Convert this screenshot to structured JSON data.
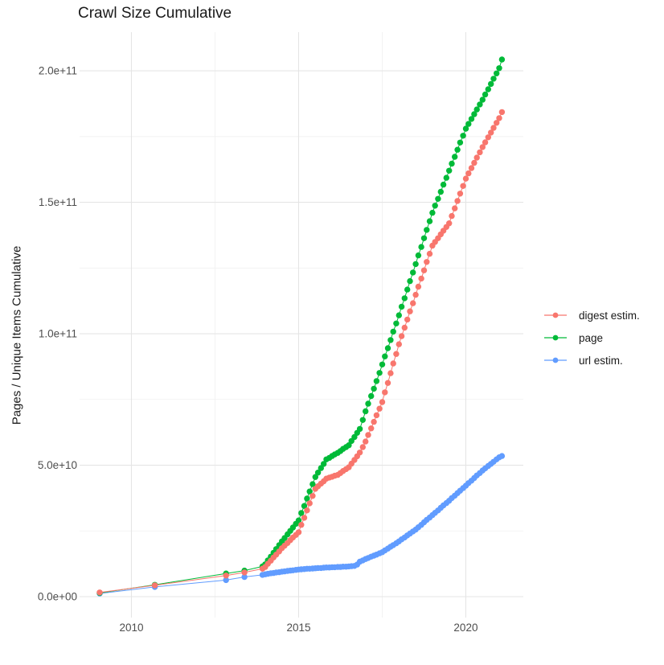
{
  "title": "Crawl Size Cumulative",
  "x_axis": {
    "ticks": [
      {
        "label": "2010",
        "value": 2010
      },
      {
        "label": "2015",
        "value": 2015
      },
      {
        "label": "2020",
        "value": 2020
      }
    ],
    "minor_gridlines": [
      2012.5,
      2017.5
    ]
  },
  "y_axis": {
    "label": "Pages / Unique Items Cumulative",
    "ticks": [
      {
        "label": "0.0e+00",
        "value": 0
      },
      {
        "label": "5.0e+10",
        "value": 50000000000.0
      },
      {
        "label": "1.0e+11",
        "value": 100000000000.0
      },
      {
        "label": "1.5e+11",
        "value": 150000000000.0
      },
      {
        "label": "2.0e+11",
        "value": 200000000000.0
      }
    ],
    "minor_gridlines": [
      25000000000.0,
      75000000000.0,
      125000000000.0,
      175000000000.0
    ]
  },
  "legend": {
    "position": "right",
    "items": [
      {
        "label": "digest estim.",
        "color": "#F8766D"
      },
      {
        "label": "page",
        "color": "#00BA38"
      },
      {
        "label": "url estim.",
        "color": "#619CFF"
      }
    ]
  },
  "style": {
    "background": "#FFFFFF",
    "grid_major": "#E5E5E5",
    "grid_minor": "#F0F0F0",
    "tick_text_color": "#4D4D4D",
    "text_color": "#1A1A1A"
  },
  "chart_data": {
    "type": "scatter",
    "mode": "line+points",
    "title": "Crawl Size Cumulative",
    "xlabel": "",
    "ylabel": "Pages / Unique Items Cumulative",
    "xlim": [
      2008.45,
      2021.72
    ],
    "ylim": [
      -7950000000.0,
      214700000000.0
    ],
    "grid": "on",
    "legend_position": "right",
    "value_unit": "point y-values are in billions (multiply by 1e9 to match axis)",
    "series": [
      {
        "name": "digest estim.",
        "color": "#F8766D",
        "points": [
          [
            2009.05,
            1.6
          ],
          [
            2010.7,
            4.3
          ],
          [
            2012.83,
            8.0
          ],
          [
            2013.38,
            9.2
          ],
          [
            2013.92,
            10.6
          ],
          [
            2014.0,
            11.3
          ],
          [
            2014.08,
            12.5
          ],
          [
            2014.17,
            13.7
          ],
          [
            2014.25,
            14.9
          ],
          [
            2014.33,
            16.0
          ],
          [
            2014.42,
            17.2
          ],
          [
            2014.5,
            18.4
          ],
          [
            2014.58,
            19.4
          ],
          [
            2014.67,
            20.4
          ],
          [
            2014.75,
            21.5
          ],
          [
            2014.83,
            22.5
          ],
          [
            2014.92,
            23.5
          ],
          [
            2015.0,
            24.5
          ],
          [
            2015.08,
            27.3
          ],
          [
            2015.17,
            30.0
          ],
          [
            2015.25,
            32.8
          ],
          [
            2015.33,
            35.5
          ],
          [
            2015.42,
            38.3
          ],
          [
            2015.5,
            41.0
          ],
          [
            2015.58,
            42.0
          ],
          [
            2015.67,
            43.0
          ],
          [
            2015.75,
            43.9
          ],
          [
            2015.83,
            44.9
          ],
          [
            2015.92,
            45.3
          ],
          [
            2016.0,
            45.6
          ],
          [
            2016.08,
            46.0
          ],
          [
            2016.17,
            46.3
          ],
          [
            2016.25,
            47.0
          ],
          [
            2016.33,
            47.8
          ],
          [
            2016.42,
            48.5
          ],
          [
            2016.5,
            49.2
          ],
          [
            2016.58,
            50.6
          ],
          [
            2016.67,
            52.0
          ],
          [
            2016.75,
            53.4
          ],
          [
            2016.83,
            54.8
          ],
          [
            2016.92,
            56.9
          ],
          [
            2017.0,
            59.0
          ],
          [
            2017.08,
            61.5
          ],
          [
            2017.17,
            64.0
          ],
          [
            2017.25,
            66.5
          ],
          [
            2017.33,
            69.0
          ],
          [
            2017.42,
            71.5
          ],
          [
            2017.5,
            74.0
          ],
          [
            2017.58,
            77.7
          ],
          [
            2017.67,
            81.3
          ],
          [
            2017.75,
            85.0
          ],
          [
            2017.83,
            88.7
          ],
          [
            2017.92,
            92.3
          ],
          [
            2018.0,
            96.0
          ],
          [
            2018.08,
            99.1
          ],
          [
            2018.17,
            102.3
          ],
          [
            2018.25,
            105.4
          ],
          [
            2018.33,
            108.5
          ],
          [
            2018.42,
            111.6
          ],
          [
            2018.5,
            114.8
          ],
          [
            2018.58,
            117.9
          ],
          [
            2018.67,
            121.0
          ],
          [
            2018.75,
            124.1
          ],
          [
            2018.83,
            127.3
          ],
          [
            2018.92,
            130.4
          ],
          [
            2019.0,
            133.5
          ],
          [
            2019.08,
            134.9
          ],
          [
            2019.17,
            136.3
          ],
          [
            2019.25,
            137.8
          ],
          [
            2019.33,
            139.2
          ],
          [
            2019.42,
            140.6
          ],
          [
            2019.5,
            142.0
          ],
          [
            2019.58,
            144.8
          ],
          [
            2019.67,
            147.7
          ],
          [
            2019.75,
            150.5
          ],
          [
            2019.83,
            153.3
          ],
          [
            2019.92,
            156.2
          ],
          [
            2020.0,
            159.0
          ],
          [
            2020.08,
            161.0
          ],
          [
            2020.17,
            163.0
          ],
          [
            2020.25,
            165.0
          ],
          [
            2020.33,
            167.0
          ],
          [
            2020.42,
            169.0
          ],
          [
            2020.5,
            171.0
          ],
          [
            2020.58,
            172.8
          ],
          [
            2020.67,
            174.7
          ],
          [
            2020.75,
            176.5
          ],
          [
            2020.83,
            178.3
          ],
          [
            2020.92,
            180.2
          ],
          [
            2021.0,
            182.0
          ],
          [
            2021.08,
            184.3
          ]
        ]
      },
      {
        "name": "page",
        "color": "#00BA38",
        "points": [
          [
            2009.05,
            1.4
          ],
          [
            2010.7,
            4.5
          ],
          [
            2012.83,
            8.8
          ],
          [
            2013.38,
            9.9
          ],
          [
            2013.92,
            11.5
          ],
          [
            2014.0,
            12.3
          ],
          [
            2014.08,
            13.8
          ],
          [
            2014.17,
            15.2
          ],
          [
            2014.25,
            16.7
          ],
          [
            2014.33,
            18.1
          ],
          [
            2014.42,
            19.6
          ],
          [
            2014.5,
            21.0
          ],
          [
            2014.58,
            22.3
          ],
          [
            2014.67,
            23.7
          ],
          [
            2014.75,
            25.0
          ],
          [
            2014.83,
            26.3
          ],
          [
            2014.92,
            27.7
          ],
          [
            2015.0,
            29.0
          ],
          [
            2015.08,
            31.8
          ],
          [
            2015.17,
            34.5
          ],
          [
            2015.25,
            37.3
          ],
          [
            2015.33,
            40.0
          ],
          [
            2015.42,
            42.8
          ],
          [
            2015.5,
            45.5
          ],
          [
            2015.58,
            47.2
          ],
          [
            2015.67,
            48.9
          ],
          [
            2015.75,
            50.5
          ],
          [
            2015.83,
            52.2
          ],
          [
            2015.92,
            52.8
          ],
          [
            2016.0,
            53.5
          ],
          [
            2016.08,
            54.1
          ],
          [
            2016.17,
            54.7
          ],
          [
            2016.25,
            55.4
          ],
          [
            2016.33,
            56.2
          ],
          [
            2016.42,
            56.9
          ],
          [
            2016.5,
            57.6
          ],
          [
            2016.58,
            59.2
          ],
          [
            2016.67,
            60.7
          ],
          [
            2016.75,
            62.3
          ],
          [
            2016.83,
            63.8
          ],
          [
            2016.92,
            67.2
          ],
          [
            2017.0,
            70.5
          ],
          [
            2017.08,
            73.4
          ],
          [
            2017.17,
            76.3
          ],
          [
            2017.25,
            79.1
          ],
          [
            2017.33,
            82.0
          ],
          [
            2017.42,
            85.1
          ],
          [
            2017.5,
            88.3
          ],
          [
            2017.58,
            91.4
          ],
          [
            2017.67,
            94.5
          ],
          [
            2017.75,
            97.6
          ],
          [
            2017.83,
            100.8
          ],
          [
            2017.92,
            103.9
          ],
          [
            2018.0,
            107.0
          ],
          [
            2018.08,
            110.3
          ],
          [
            2018.17,
            113.5
          ],
          [
            2018.25,
            116.8
          ],
          [
            2018.33,
            120.0
          ],
          [
            2018.42,
            123.3
          ],
          [
            2018.5,
            126.5
          ],
          [
            2018.58,
            129.8
          ],
          [
            2018.67,
            133.0
          ],
          [
            2018.75,
            136.3
          ],
          [
            2018.83,
            139.5
          ],
          [
            2018.92,
            142.8
          ],
          [
            2019.0,
            146.0
          ],
          [
            2019.08,
            148.7
          ],
          [
            2019.17,
            151.3
          ],
          [
            2019.25,
            154.0
          ],
          [
            2019.33,
            156.7
          ],
          [
            2019.42,
            159.3
          ],
          [
            2019.5,
            162.0
          ],
          [
            2019.58,
            164.7
          ],
          [
            2019.67,
            167.3
          ],
          [
            2019.75,
            170.0
          ],
          [
            2019.83,
            172.7
          ],
          [
            2019.92,
            175.3
          ],
          [
            2020.0,
            178.0
          ],
          [
            2020.08,
            179.8
          ],
          [
            2020.17,
            181.7
          ],
          [
            2020.25,
            183.5
          ],
          [
            2020.33,
            185.3
          ],
          [
            2020.42,
            187.2
          ],
          [
            2020.5,
            189.0
          ],
          [
            2020.58,
            191.0
          ],
          [
            2020.67,
            193.0
          ],
          [
            2020.75,
            195.0
          ],
          [
            2020.83,
            197.0
          ],
          [
            2020.92,
            199.0
          ],
          [
            2021.0,
            201.0
          ],
          [
            2021.08,
            204.3
          ]
        ]
      },
      {
        "name": "url estim.",
        "color": "#619CFF",
        "points": [
          [
            2009.05,
            1.2
          ],
          [
            2010.7,
            3.7
          ],
          [
            2012.83,
            6.3
          ],
          [
            2013.38,
            7.5
          ],
          [
            2013.92,
            8.3
          ],
          [
            2014.0,
            8.5
          ],
          [
            2014.08,
            8.7
          ],
          [
            2014.17,
            8.9
          ],
          [
            2014.25,
            9.0
          ],
          [
            2014.33,
            9.2
          ],
          [
            2014.42,
            9.3
          ],
          [
            2014.5,
            9.5
          ],
          [
            2014.58,
            9.6
          ],
          [
            2014.67,
            9.8
          ],
          [
            2014.75,
            9.9
          ],
          [
            2014.83,
            10.0
          ],
          [
            2014.92,
            10.2
          ],
          [
            2015.0,
            10.3
          ],
          [
            2015.08,
            10.4
          ],
          [
            2015.17,
            10.5
          ],
          [
            2015.25,
            10.6
          ],
          [
            2015.33,
            10.6
          ],
          [
            2015.42,
            10.7
          ],
          [
            2015.5,
            10.8
          ],
          [
            2015.58,
            10.9
          ],
          [
            2015.67,
            10.9
          ],
          [
            2015.75,
            11.0
          ],
          [
            2015.83,
            11.1
          ],
          [
            2015.92,
            11.1
          ],
          [
            2016.0,
            11.2
          ],
          [
            2016.08,
            11.2
          ],
          [
            2016.17,
            11.3
          ],
          [
            2016.25,
            11.3
          ],
          [
            2016.33,
            11.4
          ],
          [
            2016.42,
            11.4
          ],
          [
            2016.5,
            11.5
          ],
          [
            2016.58,
            11.6
          ],
          [
            2016.67,
            11.7
          ],
          [
            2016.75,
            12.2
          ],
          [
            2016.83,
            13.3
          ],
          [
            2016.92,
            13.8
          ],
          [
            2017.0,
            14.3
          ],
          [
            2017.08,
            14.7
          ],
          [
            2017.17,
            15.2
          ],
          [
            2017.25,
            15.6
          ],
          [
            2017.33,
            16.0
          ],
          [
            2017.42,
            16.5
          ],
          [
            2017.5,
            16.9
          ],
          [
            2017.58,
            17.6
          ],
          [
            2017.67,
            18.3
          ],
          [
            2017.75,
            19.0
          ],
          [
            2017.83,
            19.6
          ],
          [
            2017.92,
            20.3
          ],
          [
            2018.0,
            21.0
          ],
          [
            2018.08,
            21.8
          ],
          [
            2018.17,
            22.5
          ],
          [
            2018.25,
            23.3
          ],
          [
            2018.33,
            24.0
          ],
          [
            2018.42,
            24.8
          ],
          [
            2018.5,
            25.5
          ],
          [
            2018.58,
            26.4
          ],
          [
            2018.67,
            27.3
          ],
          [
            2018.75,
            28.3
          ],
          [
            2018.83,
            29.2
          ],
          [
            2018.92,
            30.1
          ],
          [
            2019.0,
            31.0
          ],
          [
            2019.08,
            31.9
          ],
          [
            2019.17,
            32.8
          ],
          [
            2019.25,
            33.8
          ],
          [
            2019.33,
            34.7
          ],
          [
            2019.42,
            35.6
          ],
          [
            2019.5,
            36.5
          ],
          [
            2019.58,
            37.5
          ],
          [
            2019.67,
            38.4
          ],
          [
            2019.75,
            39.4
          ],
          [
            2019.83,
            40.3
          ],
          [
            2019.92,
            41.3
          ],
          [
            2020.0,
            42.2
          ],
          [
            2020.08,
            43.2
          ],
          [
            2020.17,
            44.1
          ],
          [
            2020.25,
            45.1
          ],
          [
            2020.33,
            46.1
          ],
          [
            2020.42,
            47.0
          ],
          [
            2020.5,
            48.0
          ],
          [
            2020.58,
            48.8
          ],
          [
            2020.67,
            49.7
          ],
          [
            2020.75,
            50.5
          ],
          [
            2020.83,
            51.3
          ],
          [
            2020.92,
            52.2
          ],
          [
            2021.0,
            53.0
          ],
          [
            2021.08,
            53.5
          ]
        ]
      }
    ]
  }
}
